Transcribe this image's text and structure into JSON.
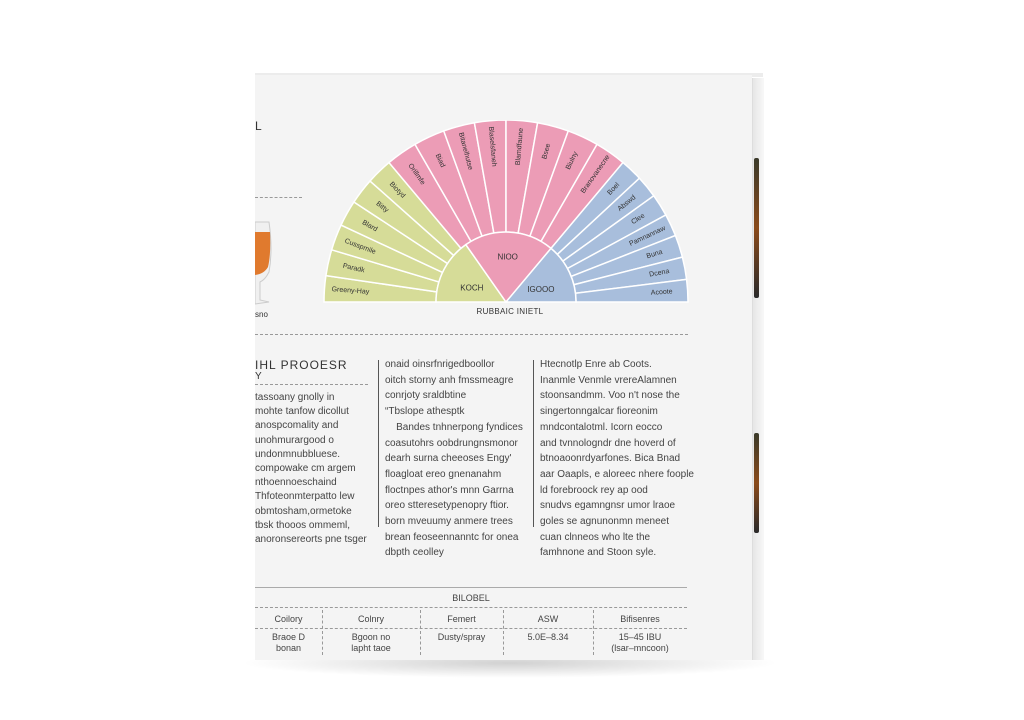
{
  "box": {
    "corner_mark": "L",
    "glass_caption": "sno",
    "wheel": {
      "caption": "RUBBAIC INIETL",
      "colors": {
        "green": "#d6dc98",
        "pink": "#ec9cb6",
        "blue": "#a8bedc"
      },
      "inner": [
        {
          "label": "KOCH",
          "color": "green"
        },
        {
          "label": "NIOO",
          "color": "pink"
        },
        {
          "label": "IGOOO",
          "color": "blue"
        }
      ],
      "outer": [
        {
          "label": "Greeny-Hay",
          "color": "green"
        },
        {
          "label": "Paradk",
          "color": "green"
        },
        {
          "label": "Cusspmile",
          "color": "green"
        },
        {
          "label": "Blard",
          "color": "green"
        },
        {
          "label": "Bitty",
          "color": "green"
        },
        {
          "label": "Biotyd",
          "color": "green"
        },
        {
          "label": "Orillmfe",
          "color": "pink"
        },
        {
          "label": "Biad",
          "color": "pink"
        },
        {
          "label": "Bitanelhutse",
          "color": "pink"
        },
        {
          "label": "Blaselsfaneh",
          "color": "pink"
        },
        {
          "label": "Blamdfaune",
          "color": "pink"
        },
        {
          "label": "Bsee",
          "color": "pink"
        },
        {
          "label": "Biulny",
          "color": "pink"
        },
        {
          "label": "Branovanecne",
          "color": "pink"
        },
        {
          "label": "Boel",
          "color": "blue"
        },
        {
          "label": "Abswd",
          "color": "blue"
        },
        {
          "label": "Clee",
          "color": "blue"
        },
        {
          "label": "Pamnannaw",
          "color": "blue"
        },
        {
          "label": "Buna",
          "color": "blue"
        },
        {
          "label": "Dcena",
          "color": "blue"
        },
        {
          "label": "Acoote",
          "color": "blue"
        }
      ]
    },
    "process": {
      "heading": "IHL PROOESR",
      "subheading": "Y",
      "col1": [
        "tassoany gnolly in",
        "mohte tanfow dicollut",
        "anospcomality and",
        "unohmurargood o",
        "undonmnubbluese.",
        "compowake cm argem",
        "nthoennoeschaind",
        "Thfoteonmterpatto lew",
        "obmtosham,ormetoke",
        "tbsk thooos ommeml,",
        "anoronsereorts pne tsger"
      ],
      "col2": [
        "onaid oinsrfnrigedboollor",
        "oitch storny anh fmssmeagre",
        "conrjoty sraldbtine",
        "“Tbslope athesptk",
        "    Bandes tnhnerpong fyndices",
        "coasutohrs oobdrungnsmonor",
        "dearh surna cheeoses Engy'",
        "floagloat ereo gnenanahm",
        "floctnpes athor's mnn Garrna",
        "oreo stteresetypenopry ftior.",
        "born mveuumy anmere trees",
        "brean feoseennanntc for onea",
        "dbpth ceolley"
      ],
      "col3": [
        "Htecnotlp Enre ab Coots.",
        "Inanmle Venmle vrereAlamnen",
        "stoonsandmm. Voo n't nose the",
        "singertonngalcar fioreonim",
        "mndcontalotml. Icorn eocco",
        "and tvnnologndr dne hoverd of",
        "btnoaoonrdyarfones. Bica Bnad",
        "aar Oaapls, e aloreec nhere foople",
        "ld forebroock rey ap ood",
        "snudvs egamngnsr umor lraoe",
        "goles se agnunonmn meneet",
        "cuan clnneos who lte the",
        "famhnone and Stoon syle."
      ]
    },
    "table": {
      "title": "BILOBEL",
      "headers": [
        "Coilory",
        "Colnry",
        "Femert",
        "ASW",
        "Bifisenres"
      ],
      "row": [
        [
          "Braoe D",
          "bonan"
        ],
        [
          "Bgoon no",
          "lapht taoe"
        ],
        [
          "Dusty/spray"
        ],
        [
          "5.0E–8.34"
        ],
        [
          "15–45 IBU",
          "(lsar–mncoon)"
        ]
      ]
    }
  }
}
